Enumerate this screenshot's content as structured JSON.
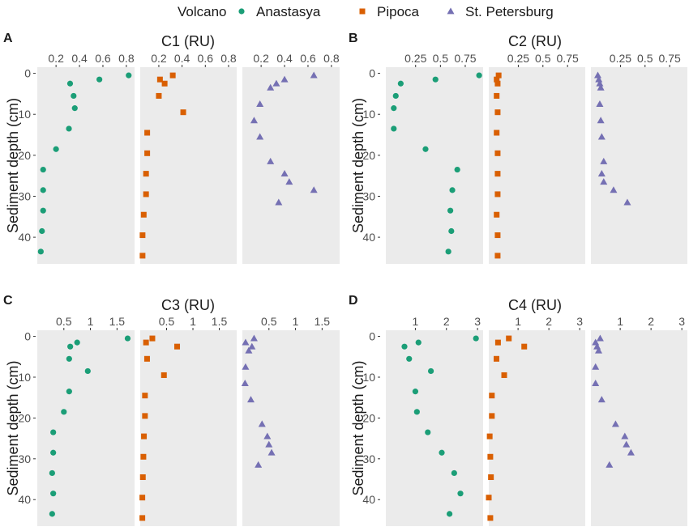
{
  "legend": {
    "title": "Volcano",
    "items": [
      {
        "name": "Anastasya",
        "color": "#1b9e77",
        "shape": "circle"
      },
      {
        "name": "Pipoca",
        "color": "#d95f02",
        "shape": "square"
      },
      {
        "name": "St. Petersburg",
        "color": "#7570b3",
        "shape": "triangle"
      }
    ]
  },
  "chart_data": [
    {
      "panel": "A",
      "title": "C1 (RU)",
      "ylabel": "Sediment depth (cm)",
      "type": "scatter",
      "xticks": [
        0.2,
        0.4,
        0.6,
        0.8
      ],
      "xlim": [
        0.04,
        0.87
      ],
      "yticks": [
        0,
        10,
        20,
        30,
        40
      ],
      "ylim": [
        -1.5,
        46.5
      ],
      "y_reversed": true,
      "series": [
        {
          "name": "Anastasya",
          "points": [
            [
              0.82,
              0.5
            ],
            [
              0.57,
              1.5
            ],
            [
              0.32,
              2.5
            ],
            [
              0.35,
              5.5
            ],
            [
              0.36,
              8.5
            ],
            [
              0.31,
              13.5
            ],
            [
              0.2,
              18.5
            ],
            [
              0.09,
              23.5
            ],
            [
              0.09,
              28.5
            ],
            [
              0.09,
              33.5
            ],
            [
              0.08,
              38.5
            ],
            [
              0.07,
              43.5
            ]
          ]
        },
        {
          "name": "Pipoca",
          "points": [
            [
              0.32,
              0.5
            ],
            [
              0.21,
              1.5
            ],
            [
              0.25,
              2.5
            ],
            [
              0.2,
              5.5
            ],
            [
              0.41,
              9.5
            ],
            [
              0.1,
              14.5
            ],
            [
              0.1,
              19.5
            ],
            [
              0.09,
              24.5
            ],
            [
              0.09,
              29.5
            ],
            [
              0.07,
              34.5
            ],
            [
              0.06,
              39.5
            ],
            [
              0.06,
              44.5
            ]
          ]
        },
        {
          "name": "St. Petersburg",
          "points": [
            [
              0.65,
              0.5
            ],
            [
              0.4,
              1.5
            ],
            [
              0.33,
              2.5
            ],
            [
              0.28,
              3.5
            ],
            [
              0.19,
              7.5
            ],
            [
              0.14,
              11.5
            ],
            [
              0.19,
              15.5
            ],
            [
              0.28,
              21.5
            ],
            [
              0.4,
              24.5
            ],
            [
              0.44,
              26.5
            ],
            [
              0.65,
              28.5
            ],
            [
              0.35,
              31.5
            ]
          ]
        }
      ]
    },
    {
      "panel": "B",
      "title": "C2 (RU)",
      "ylabel": "Sediment depth (cm)",
      "type": "scatter",
      "xticks": [
        0.25,
        0.5,
        0.75
      ],
      "xlim": [
        -0.05,
        0.93
      ],
      "yticks": [
        0,
        10,
        20,
        30,
        40
      ],
      "ylim": [
        -1.5,
        46.5
      ],
      "y_reversed": true,
      "series": [
        {
          "name": "Anastasya",
          "points": [
            [
              0.89,
              0.5
            ],
            [
              0.45,
              1.5
            ],
            [
              0.1,
              2.5
            ],
            [
              0.05,
              5.5
            ],
            [
              0.03,
              8.5
            ],
            [
              0.03,
              13.5
            ],
            [
              0.35,
              18.5
            ],
            [
              0.67,
              23.5
            ],
            [
              0.62,
              28.5
            ],
            [
              0.6,
              33.5
            ],
            [
              0.61,
              38.5
            ],
            [
              0.58,
              43.5
            ]
          ]
        },
        {
          "name": "Pipoca",
          "points": [
            [
              0.05,
              0.5
            ],
            [
              0.03,
              1.5
            ],
            [
              0.04,
              2.5
            ],
            [
              0.03,
              5.5
            ],
            [
              0.04,
              9.5
            ],
            [
              0.03,
              14.5
            ],
            [
              0.04,
              19.5
            ],
            [
              0.04,
              24.5
            ],
            [
              0.04,
              29.5
            ],
            [
              0.03,
              34.5
            ],
            [
              0.04,
              39.5
            ],
            [
              0.04,
              44.5
            ]
          ]
        },
        {
          "name": "St. Petersburg",
          "points": [
            [
              0.02,
              0.5
            ],
            [
              0.03,
              1.5
            ],
            [
              0.04,
              2.5
            ],
            [
              0.05,
              3.5
            ],
            [
              0.04,
              7.5
            ],
            [
              0.05,
              11.5
            ],
            [
              0.06,
              15.5
            ],
            [
              0.08,
              21.5
            ],
            [
              0.06,
              24.5
            ],
            [
              0.08,
              26.5
            ],
            [
              0.18,
              28.5
            ],
            [
              0.32,
              31.5
            ]
          ]
        }
      ]
    },
    {
      "panel": "C",
      "title": "C3 (RU)",
      "ylabel": "Sediment depth (cm)",
      "type": "scatter",
      "xticks": [
        0.5,
        1.0,
        1.5
      ],
      "xlim": [
        0.0,
        1.83
      ],
      "yticks": [
        0,
        10,
        20,
        30,
        40
      ],
      "ylim": [
        -1.5,
        46.5
      ],
      "y_reversed": true,
      "series": [
        {
          "name": "Anastasya",
          "points": [
            [
              1.7,
              0.5
            ],
            [
              0.75,
              1.5
            ],
            [
              0.62,
              2.5
            ],
            [
              0.6,
              5.5
            ],
            [
              0.95,
              8.5
            ],
            [
              0.6,
              13.5
            ],
            [
              0.5,
              18.5
            ],
            [
              0.3,
              23.5
            ],
            [
              0.3,
              28.5
            ],
            [
              0.28,
              33.5
            ],
            [
              0.3,
              38.5
            ],
            [
              0.28,
              43.5
            ]
          ]
        },
        {
          "name": "Pipoca",
          "points": [
            [
              0.23,
              0.5
            ],
            [
              0.11,
              1.5
            ],
            [
              0.7,
              2.5
            ],
            [
              0.13,
              5.5
            ],
            [
              0.45,
              9.5
            ],
            [
              0.09,
              14.5
            ],
            [
              0.09,
              19.5
            ],
            [
              0.07,
              24.5
            ],
            [
              0.06,
              29.5
            ],
            [
              0.05,
              34.5
            ],
            [
              0.04,
              39.5
            ],
            [
              0.04,
              44.5
            ]
          ]
        },
        {
          "name": "St. Petersburg",
          "points": [
            [
              0.22,
              0.5
            ],
            [
              0.06,
              1.5
            ],
            [
              0.18,
              2.5
            ],
            [
              0.12,
              3.5
            ],
            [
              0.06,
              7.5
            ],
            [
              0.05,
              11.5
            ],
            [
              0.16,
              15.5
            ],
            [
              0.37,
              21.5
            ],
            [
              0.47,
              24.5
            ],
            [
              0.5,
              26.5
            ],
            [
              0.55,
              28.5
            ],
            [
              0.3,
              31.5
            ]
          ]
        }
      ]
    },
    {
      "panel": "D",
      "title": "C4 (RU)",
      "ylabel": "Sediment depth (cm)",
      "type": "scatter",
      "xticks": [
        1,
        2,
        3
      ],
      "xlim": [
        0.05,
        3.18
      ],
      "yticks": [
        0,
        10,
        20,
        30,
        40
      ],
      "ylim": [
        -1.5,
        46.5
      ],
      "y_reversed": true,
      "series": [
        {
          "name": "Anastasya",
          "points": [
            [
              2.95,
              0.5
            ],
            [
              1.1,
              1.5
            ],
            [
              0.65,
              2.5
            ],
            [
              0.8,
              5.5
            ],
            [
              1.5,
              8.5
            ],
            [
              1.0,
              13.5
            ],
            [
              1.05,
              18.5
            ],
            [
              1.4,
              23.5
            ],
            [
              1.85,
              28.5
            ],
            [
              2.25,
              33.5
            ],
            [
              2.45,
              38.5
            ],
            [
              2.1,
              43.5
            ]
          ]
        },
        {
          "name": "Pipoca",
          "points": [
            [
              0.7,
              0.5
            ],
            [
              0.35,
              1.5
            ],
            [
              1.2,
              2.5
            ],
            [
              0.3,
              5.5
            ],
            [
              0.55,
              9.5
            ],
            [
              0.15,
              14.5
            ],
            [
              0.15,
              19.5
            ],
            [
              0.08,
              24.5
            ],
            [
              0.1,
              29.5
            ],
            [
              0.12,
              34.5
            ],
            [
              0.05,
              39.5
            ],
            [
              0.1,
              44.5
            ]
          ]
        },
        {
          "name": "St. Petersburg",
          "points": [
            [
              0.35,
              0.5
            ],
            [
              0.2,
              1.5
            ],
            [
              0.25,
              2.5
            ],
            [
              0.3,
              3.5
            ],
            [
              0.2,
              7.5
            ],
            [
              0.2,
              11.5
            ],
            [
              0.4,
              15.5
            ],
            [
              0.85,
              21.5
            ],
            [
              1.15,
              24.5
            ],
            [
              1.2,
              26.5
            ],
            [
              1.35,
              28.5
            ],
            [
              0.65,
              31.5
            ]
          ]
        }
      ]
    }
  ]
}
